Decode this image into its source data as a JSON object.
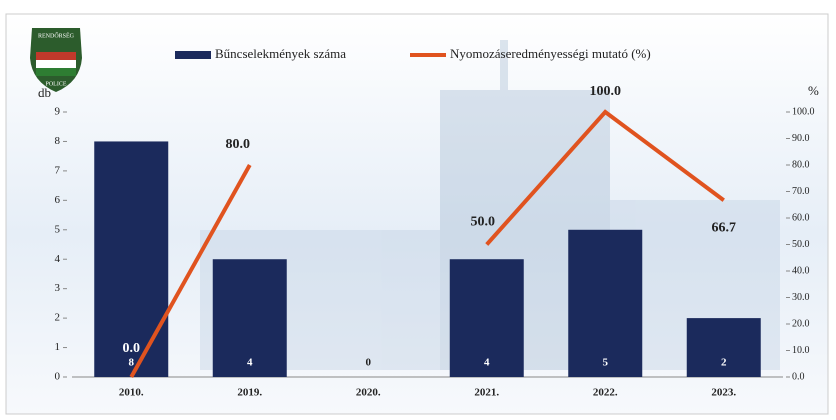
{
  "chart_data": {
    "type": "bar",
    "logo_text": [
      "RENDŐRSÉG",
      "POLICE"
    ],
    "y_label": "db",
    "y2_label": "%",
    "categories": [
      "2010.",
      "2019.",
      "2020.",
      "2021.",
      "2022.",
      "2023."
    ],
    "series": [
      {
        "name": "Bűncselekmények száma",
        "type": "bar",
        "color": "#1b2a5c",
        "values": [
          8,
          4,
          0,
          4,
          5,
          2
        ]
      },
      {
        "name": "Nyomozáseredményességi mutató (%)",
        "type": "line",
        "axis": "y2",
        "color": "#e0531f",
        "values": [
          0,
          80,
          null,
          50,
          100,
          66.7
        ],
        "value_labels": [
          "0.0",
          "80.0",
          null,
          "50.0",
          "100.0",
          "66.7"
        ]
      }
    ],
    "ylim": [
      0,
      9
    ],
    "yticks": [
      0,
      1,
      2,
      3,
      4,
      5,
      6,
      7,
      8,
      9
    ],
    "y2lim": [
      0,
      100
    ],
    "y2ticks": [
      {
        "value": 0,
        "label": "0.0"
      },
      {
        "value": 10,
        "label": "10.0"
      },
      {
        "value": 20,
        "label": "20.0"
      },
      {
        "value": 30,
        "label": "30.0"
      },
      {
        "value": 40,
        "label": "40.0"
      },
      {
        "value": 50,
        "label": "50.0"
      },
      {
        "value": 60,
        "label": "60.0"
      },
      {
        "value": 70,
        "label": "70.0"
      },
      {
        "value": 80,
        "label": "80.0"
      },
      {
        "value": 90,
        "label": "90.0"
      },
      {
        "value": 100,
        "label": "100.0"
      }
    ]
  }
}
